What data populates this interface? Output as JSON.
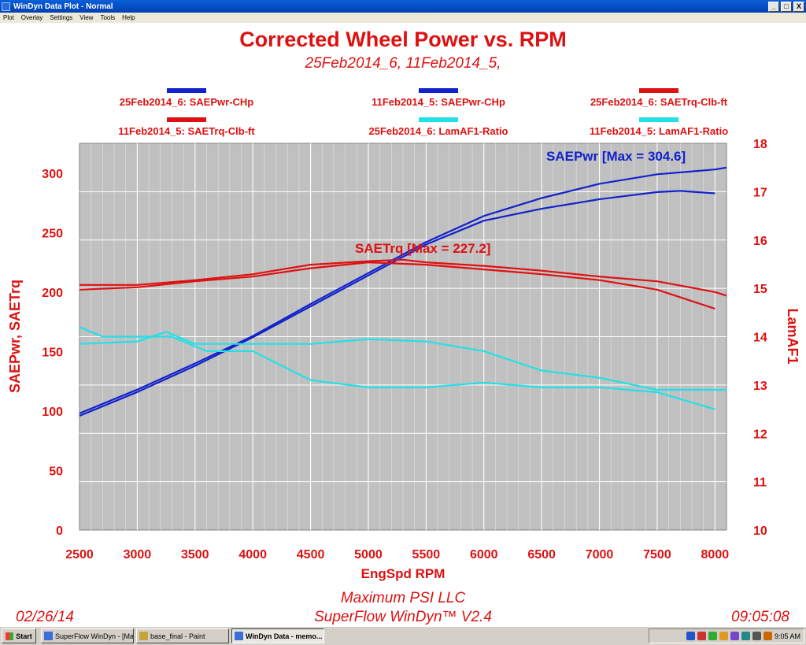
{
  "window": {
    "title": "WinDyn Data Plot - Normal",
    "min_label": "_",
    "max_label": "□",
    "close_label": "X"
  },
  "menu": [
    "Plot",
    "Overlay",
    "Settings",
    "View",
    "Tools",
    "Help"
  ],
  "chart_data": {
    "type": "line",
    "title": "Corrected Wheel Power vs. RPM",
    "subtitle": "25Feb2014_6, 11Feb2014_5,",
    "xlabel": "EngSpd RPM",
    "ylabel_left": "SAEPwr, SAETrq",
    "ylabel_right": "LamAF1",
    "x_ticks": [
      2500,
      3000,
      3500,
      4000,
      4500,
      5000,
      5500,
      6000,
      6500,
      7000,
      7500,
      8000
    ],
    "y_left_ticks": [
      0,
      50,
      100,
      150,
      200,
      250,
      300
    ],
    "y_right_ticks": [
      10,
      11,
      12,
      13,
      14,
      15,
      16,
      17,
      18
    ],
    "xlim": [
      2500,
      8100
    ],
    "ylim_left": [
      0,
      325
    ],
    "ylim_right": [
      10,
      18
    ],
    "grid": true,
    "legend_position": "top",
    "annotations": {
      "power_max": "SAEPwr [Max = 304.6]",
      "torque_max": "SAETrq [Max = 227.2]"
    },
    "footer": {
      "company": "Maximum PSI LLC",
      "software": "SuperFlow WinDyn™ V2.4",
      "date": "02/26/14",
      "time": "09:05:08"
    },
    "colors": {
      "red": "#dd1111",
      "blue": "#1122cc",
      "cyan": "#22e0e8",
      "plot_bg": "#c0c0c0"
    },
    "series": [
      {
        "name": "25Feb2014_6: SAEPwr-CHp",
        "axis": "left",
        "color": "#1122cc",
        "x": [
          2500,
          3000,
          3500,
          4000,
          4500,
          5000,
          5500,
          6000,
          6500,
          7000,
          7500,
          8000,
          8100
        ],
        "y": [
          98,
          118,
          140,
          163,
          190,
          216,
          242,
          264,
          279,
          291,
          299,
          303,
          304.6
        ]
      },
      {
        "name": "11Feb2014_5: SAEPwr-CHp",
        "axis": "left",
        "color": "#1122cc",
        "x": [
          2500,
          3000,
          3500,
          4000,
          4500,
          5000,
          5500,
          6000,
          6500,
          7000,
          7500,
          7700,
          8000
        ],
        "y": [
          96,
          116,
          138,
          162,
          188,
          214,
          240,
          260,
          270,
          278,
          284,
          285,
          283
        ]
      },
      {
        "name": "25Feb2014_6: SAETrq-Clb-ft",
        "axis": "left",
        "color": "#dd1111",
        "x": [
          2500,
          3000,
          3500,
          4000,
          4500,
          5000,
          5300,
          5500,
          6000,
          6500,
          7000,
          7500,
          8000,
          8100
        ],
        "y": [
          206,
          206,
          210,
          215,
          223,
          226,
          227.2,
          225,
          222,
          218,
          213,
          209,
          200,
          197
        ]
      },
      {
        "name": "11Feb2014_5: SAETrq-Clb-ft",
        "axis": "left",
        "color": "#dd1111",
        "x": [
          2500,
          3000,
          3500,
          4000,
          4500,
          5000,
          5500,
          6000,
          6500,
          7000,
          7500,
          8000
        ],
        "y": [
          202,
          204,
          209,
          213,
          220,
          225,
          223,
          219,
          215,
          210,
          202,
          186
        ]
      },
      {
        "name": "11Feb2014_5: LamAF1-Ratio",
        "axis": "right",
        "color": "#22e0e8",
        "x": [
          2500,
          2700,
          3000,
          3300,
          3600,
          4000,
          4500,
          5000,
          5500,
          6000,
          6500,
          7000,
          7500,
          8000
        ],
        "y": [
          14.2,
          14.0,
          14.0,
          14.0,
          13.7,
          13.7,
          13.1,
          12.95,
          12.95,
          13.05,
          12.95,
          12.95,
          12.85,
          12.5
        ]
      },
      {
        "name": "25Feb2014_6: LamAF1-Ratio",
        "axis": "right",
        "color": "#22e0e8",
        "x": [
          2500,
          3000,
          3250,
          3500,
          4000,
          4500,
          5000,
          5500,
          6000,
          6500,
          7000,
          7500,
          8000,
          8100
        ],
        "y": [
          13.85,
          13.9,
          14.1,
          13.85,
          13.85,
          13.85,
          13.95,
          13.9,
          13.7,
          13.3,
          13.15,
          12.9,
          12.9,
          12.9
        ]
      }
    ],
    "legend_layout": [
      {
        "label": "25Feb2014_6: SAEPwr-CHp",
        "color": "#1122cc"
      },
      {
        "label": "11Feb2014_5: SAEPwr-CHp",
        "color": "#1122cc"
      },
      {
        "label": "25Feb2014_6: SAETrq-Clb-ft",
        "color": "#dd1111"
      },
      {
        "label": "11Feb2014_5: SAETrq-Clb-ft",
        "color": "#dd1111"
      },
      {
        "label": "25Feb2014_6: LamAF1-Ratio",
        "color": "#22e0e8"
      },
      {
        "label": "11Feb2014_5: LamAF1-Ratio",
        "color": "#22e0e8"
      }
    ]
  },
  "taskbar": {
    "start_label": "Start",
    "tasks": [
      {
        "label": "SuperFlow WinDyn - [Mai...",
        "active": false
      },
      {
        "label": "base_final - Paint",
        "active": false
      },
      {
        "label": "WinDyn Data - memo...",
        "active": true
      }
    ],
    "clock": "9:05 AM",
    "tray_icon_colors": [
      "#2255cc",
      "#cc3333",
      "#33aa33",
      "#dd9922",
      "#7744cc",
      "#228888",
      "#555555",
      "#cc6600"
    ]
  }
}
